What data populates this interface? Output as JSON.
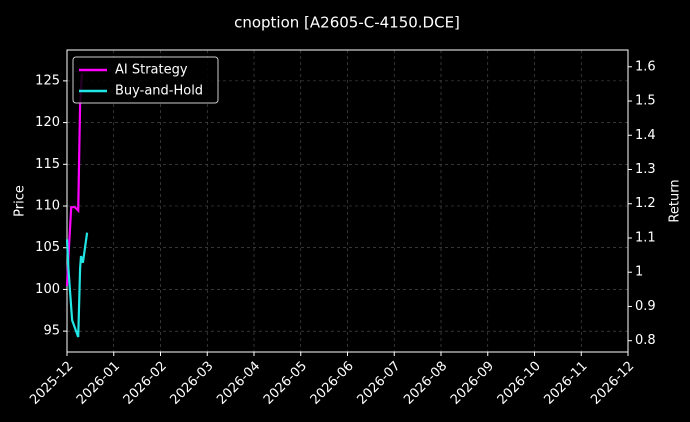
{
  "chart_data": {
    "type": "line",
    "title": "cnoption [A2605-C-4150.DCE]",
    "ylabel": "Price",
    "y2label": "Return",
    "xlim": [
      0,
      12
    ],
    "xticks": [
      {
        "value": 0,
        "label": "2025-12"
      },
      {
        "value": 1,
        "label": "2026-01"
      },
      {
        "value": 2,
        "label": "2026-02"
      },
      {
        "value": 3,
        "label": "2026-03"
      },
      {
        "value": 4,
        "label": "2026-04"
      },
      {
        "value": 5,
        "label": "2026-05"
      },
      {
        "value": 6,
        "label": "2026-06"
      },
      {
        "value": 7,
        "label": "2026-07"
      },
      {
        "value": 8,
        "label": "2026-08"
      },
      {
        "value": 9,
        "label": "2026-09"
      },
      {
        "value": 10,
        "label": "2026-10"
      },
      {
        "value": 11,
        "label": "2026-11"
      },
      {
        "value": 12,
        "label": "2026-12"
      }
    ],
    "ylim": [
      92.5,
      128.7
    ],
    "yticks": [
      95,
      100,
      105,
      110,
      115,
      120,
      125
    ],
    "y2lim": [
      0.767,
      1.649
    ],
    "y2ticks": [
      0.8,
      0.9,
      1.0,
      1.1,
      1.2,
      1.3,
      1.4,
      1.5,
      1.6
    ],
    "grid": true,
    "legend": "upper left",
    "series": [
      {
        "name": "AI Strategy",
        "color": "#ff00ff",
        "axis": "y2",
        "x": [
          0,
          0.02,
          0.09,
          0.17,
          0.24,
          0.28,
          0.32
        ],
        "values": [
          0.96,
          1.02,
          1.19,
          1.19,
          1.18,
          1.49,
          1.58
        ]
      },
      {
        "name": "Buy-and-Hold",
        "color": "#22e5e5",
        "x": [
          0,
          0.03,
          0.11,
          0.24,
          0.28,
          0.3,
          0.34,
          0.43
        ],
        "values": [
          106,
          102.5,
          96.3,
          94.3,
          102.5,
          104,
          103.2,
          106.8
        ]
      }
    ]
  }
}
